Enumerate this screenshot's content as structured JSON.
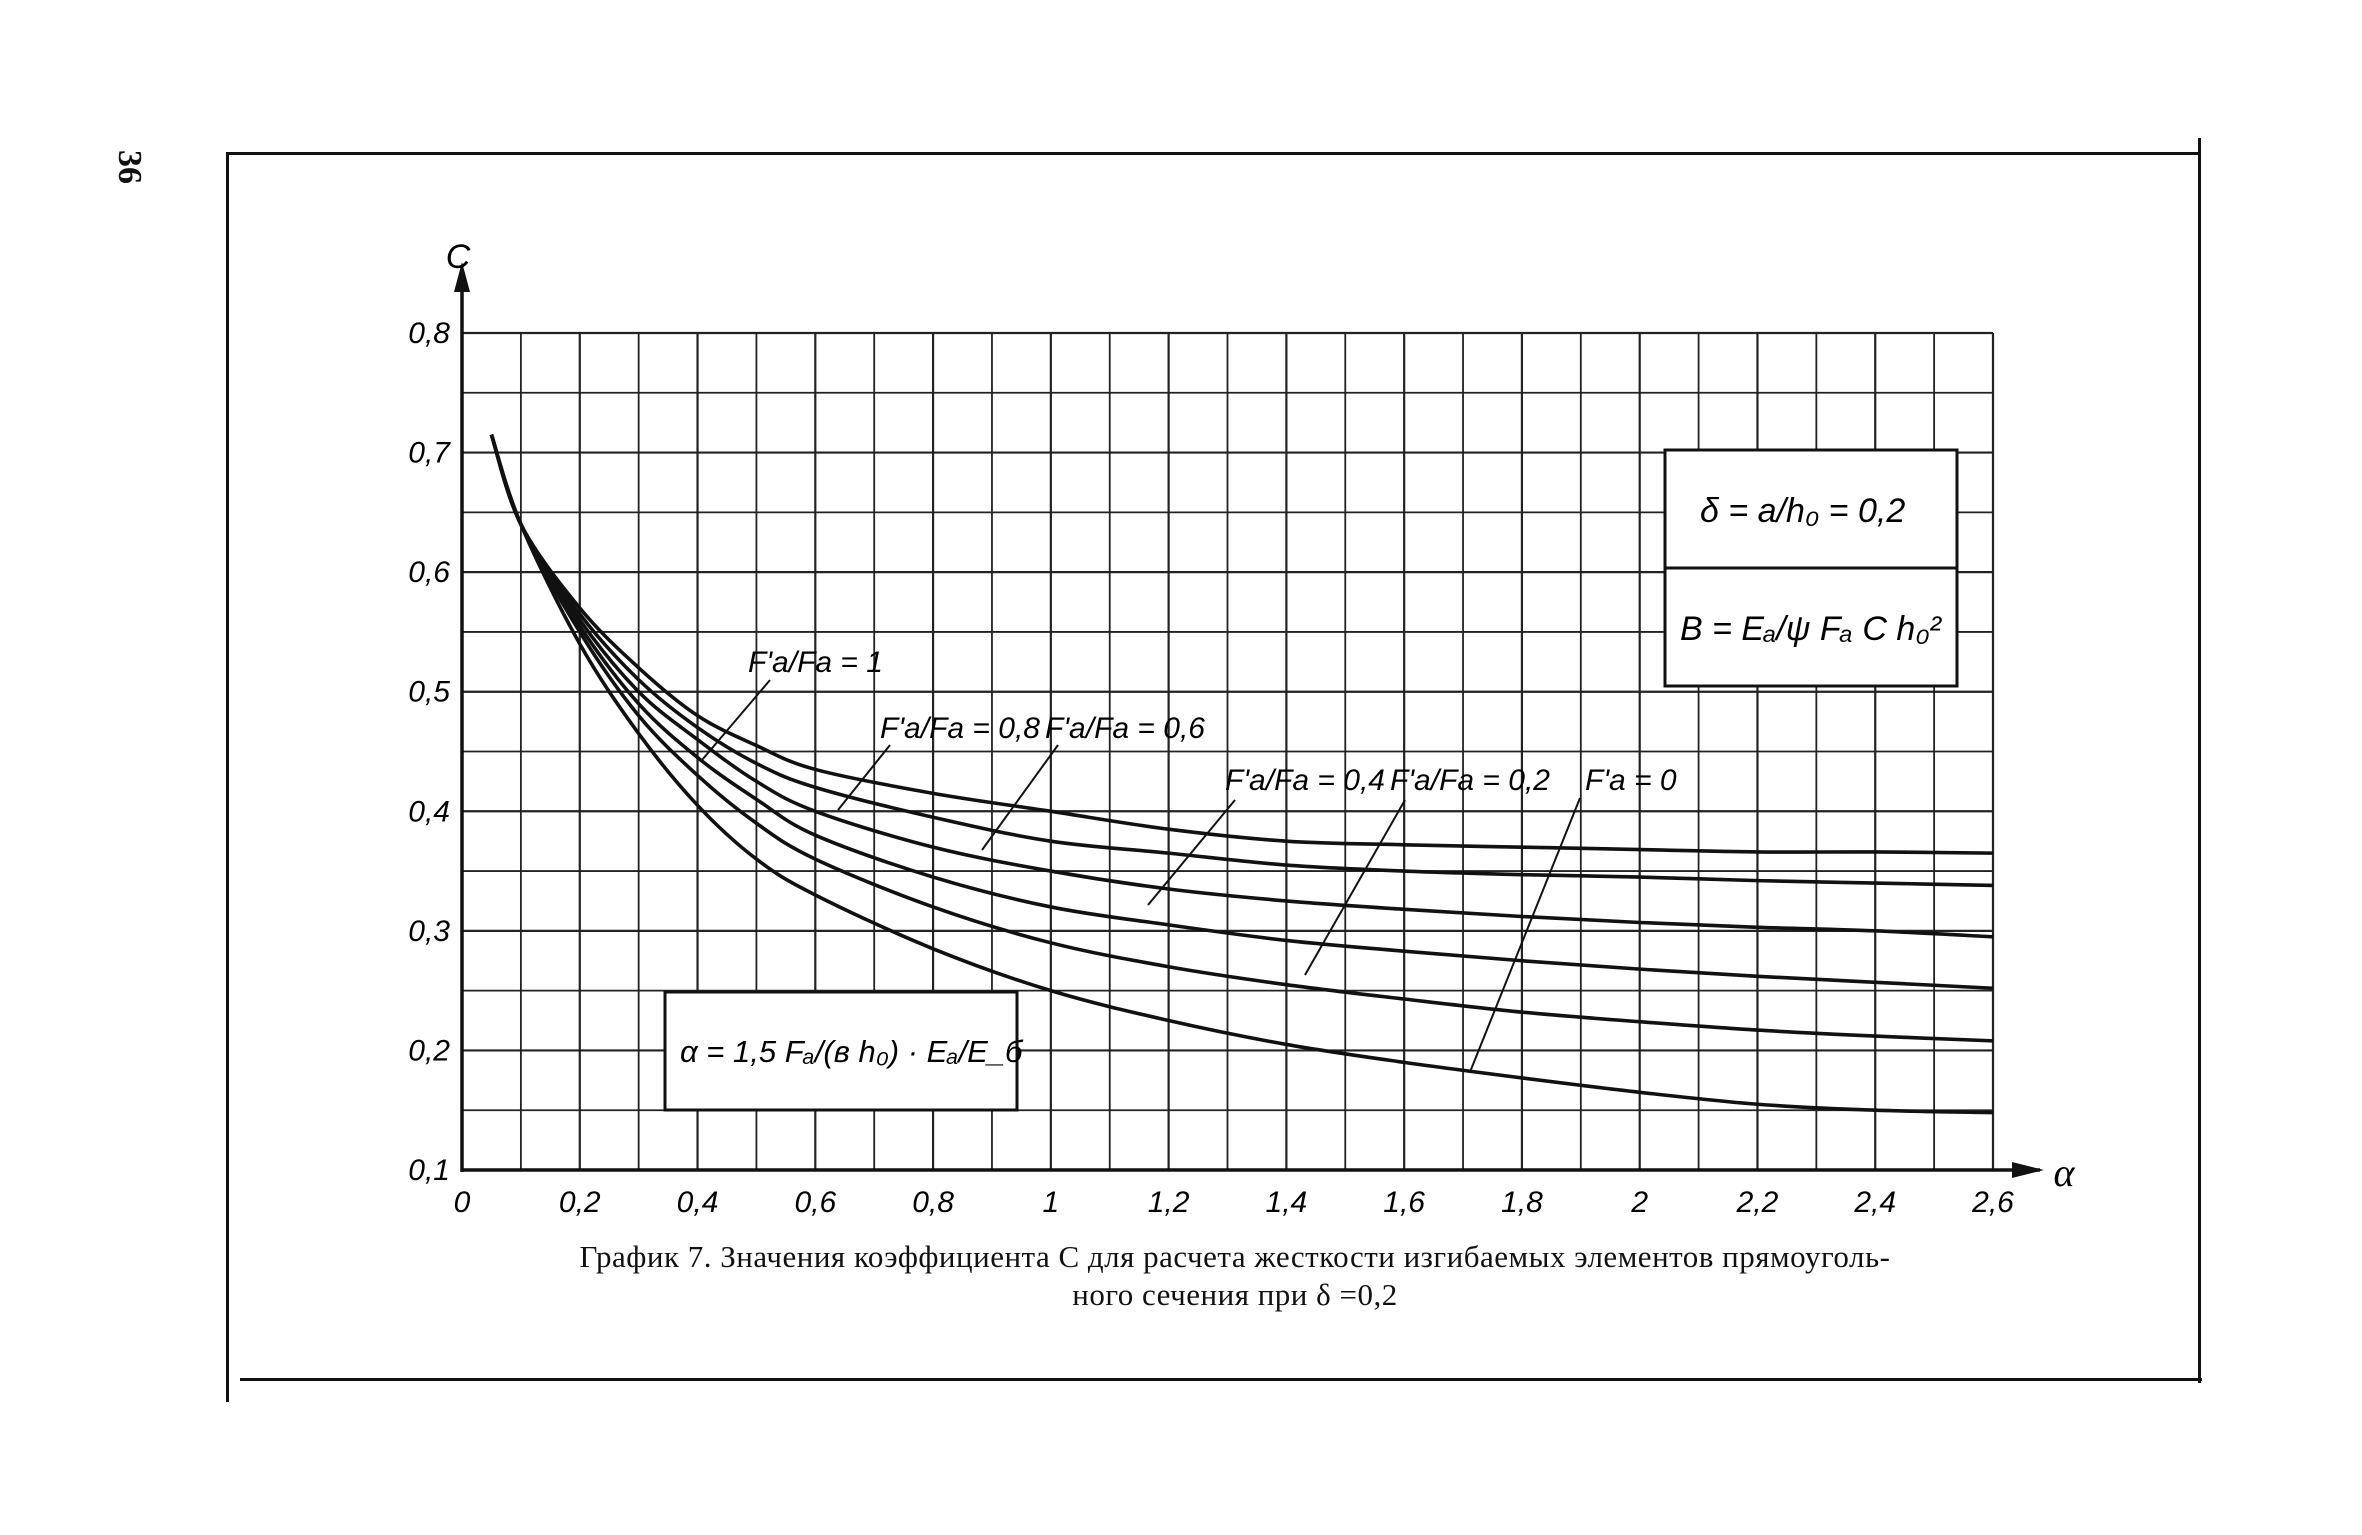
{
  "page_number": "36",
  "caption": {
    "line1": "График 7. Значения коэффициента C для расчета жесткости изгибаемых элементов прямоуголь-",
    "line2": "ного сечения при δ =0,2"
  },
  "formula_box_top": {
    "line1": "δ = a/h₀ = 0,2",
    "line2": "B = Eₐ/ψ Fₐ C h₀²"
  },
  "formula_box_bottom": {
    "line1": "α = 1,5 Fₐ/(в h₀) · Eₐ/E_б"
  },
  "chart_data": {
    "type": "line",
    "xlabel": "α",
    "ylabel": "C",
    "xlim": [
      0,
      2.6
    ],
    "ylim": [
      0.1,
      0.8
    ],
    "x_ticks": [
      "0",
      "0,2",
      "0,4",
      "0,6",
      "0,8",
      "1",
      "1,2",
      "1,4",
      "1,6",
      "1,8",
      "2",
      "2,2",
      "2,4",
      "2,6"
    ],
    "y_ticks": [
      "0,1",
      "0,2",
      "0,3",
      "0,4",
      "0,5",
      "0,6",
      "0,7",
      "0,8"
    ],
    "grid": true,
    "series": [
      {
        "name": "F'a/Fa = 1",
        "x": [
          0.05,
          0.1,
          0.2,
          0.3,
          0.4,
          0.5,
          0.6,
          0.8,
          1.0,
          1.2,
          1.4,
          1.6,
          1.8,
          2.0,
          2.2,
          2.4,
          2.6
        ],
        "y": [
          0.715,
          0.64,
          0.57,
          0.52,
          0.48,
          0.455,
          0.435,
          0.415,
          0.4,
          0.385,
          0.375,
          0.372,
          0.37,
          0.368,
          0.366,
          0.366,
          0.365
        ]
      },
      {
        "name": "F'a/Fa = 0,8",
        "x": [
          0.05,
          0.1,
          0.2,
          0.3,
          0.4,
          0.5,
          0.6,
          0.8,
          1.0,
          1.2,
          1.4,
          1.6,
          1.8,
          2.0,
          2.2,
          2.4,
          2.6
        ],
        "y": [
          0.715,
          0.64,
          0.565,
          0.51,
          0.47,
          0.44,
          0.42,
          0.395,
          0.375,
          0.365,
          0.355,
          0.35,
          0.347,
          0.345,
          0.342,
          0.34,
          0.338
        ]
      },
      {
        "name": "F'a/Fa = 0,6",
        "x": [
          0.05,
          0.1,
          0.2,
          0.3,
          0.4,
          0.5,
          0.6,
          0.8,
          1.0,
          1.2,
          1.4,
          1.6,
          1.8,
          2.0,
          2.2,
          2.4,
          2.6
        ],
        "y": [
          0.715,
          0.64,
          0.56,
          0.5,
          0.46,
          0.425,
          0.4,
          0.37,
          0.35,
          0.335,
          0.325,
          0.318,
          0.312,
          0.307,
          0.303,
          0.3,
          0.295
        ]
      },
      {
        "name": "F'a/Fa = 0,4",
        "x": [
          0.05,
          0.1,
          0.2,
          0.3,
          0.4,
          0.5,
          0.6,
          0.8,
          1.0,
          1.2,
          1.4,
          1.6,
          1.8,
          2.0,
          2.2,
          2.4,
          2.6
        ],
        "y": [
          0.715,
          0.64,
          0.555,
          0.49,
          0.445,
          0.41,
          0.38,
          0.345,
          0.32,
          0.305,
          0.292,
          0.283,
          0.275,
          0.268,
          0.262,
          0.257,
          0.252
        ]
      },
      {
        "name": "F'a/Fa = 0,2",
        "x": [
          0.05,
          0.1,
          0.2,
          0.3,
          0.4,
          0.5,
          0.6,
          0.8,
          1.0,
          1.2,
          1.4,
          1.6,
          1.8,
          2.0,
          2.2,
          2.4,
          2.6
        ],
        "y": [
          0.715,
          0.64,
          0.55,
          0.48,
          0.43,
          0.39,
          0.36,
          0.32,
          0.29,
          0.27,
          0.255,
          0.243,
          0.232,
          0.224,
          0.217,
          0.212,
          0.208
        ]
      },
      {
        "name": "F'a = 0",
        "x": [
          0.05,
          0.1,
          0.2,
          0.3,
          0.4,
          0.5,
          0.6,
          0.8,
          1.0,
          1.2,
          1.4,
          1.6,
          1.8,
          2.0,
          2.2,
          2.4,
          2.6
        ],
        "y": [
          0.715,
          0.64,
          0.54,
          0.465,
          0.405,
          0.36,
          0.33,
          0.285,
          0.25,
          0.225,
          0.205,
          0.19,
          0.177,
          0.165,
          0.155,
          0.15,
          0.148
        ]
      }
    ]
  }
}
